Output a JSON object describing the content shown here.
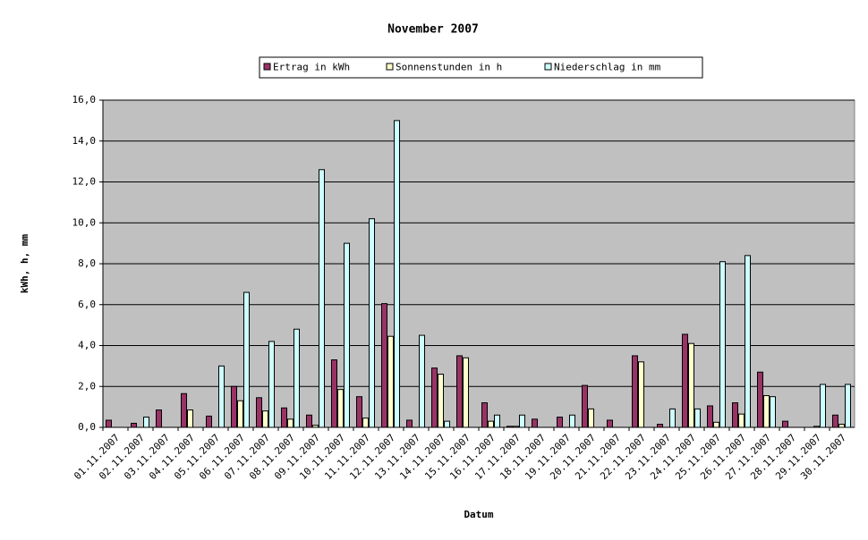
{
  "chart_data": {
    "type": "bar",
    "title": "November 2007",
    "x_label": "Datum",
    "y_label": "kWh, h, mm",
    "categories": [
      "01.11.2007",
      "02.11.2007",
      "03.11.2007",
      "04.11.2007",
      "05.11.2007",
      "06.11.2007",
      "07.11.2007",
      "08.11.2007",
      "09.11.2007",
      "10.11.2007",
      "11.11.2007",
      "12.11.2007",
      "13.11.2007",
      "14.11.2007",
      "15.11.2007",
      "16.11.2007",
      "17.11.2007",
      "18.11.2007",
      "19.11.2007",
      "20.11.2007",
      "21.11.2007",
      "22.11.2007",
      "23.11.2007",
      "24.11.2007",
      "25.11.2007",
      "26.11.2007",
      "27.11.2007",
      "28.11.2007",
      "29.11.2007",
      "30.11.2007"
    ],
    "series": [
      {
        "name": "Ertrag in kWh",
        "color": "#993366",
        "values": [
          0.35,
          0.2,
          0.85,
          1.65,
          0.55,
          2.0,
          1.45,
          0.95,
          0.6,
          3.3,
          1.5,
          6.05,
          0.35,
          2.9,
          3.5,
          1.2,
          0.05,
          0.4,
          0.5,
          2.05,
          0.35,
          3.5,
          0.15,
          4.55,
          1.05,
          1.2,
          2.7,
          0.3,
          0,
          0.6
        ]
      },
      {
        "name": "Sonnenstunden in h",
        "color": "#ffffcc",
        "values": [
          0,
          0,
          0,
          0.85,
          0,
          1.3,
          0.8,
          0.4,
          0.1,
          1.85,
          0.45,
          4.45,
          0,
          2.6,
          3.4,
          0.3,
          0.05,
          0,
          0,
          0.9,
          0,
          3.2,
          0,
          4.1,
          0.25,
          0.65,
          1.55,
          0,
          0.05,
          0.15
        ]
      },
      {
        "name": "Niederschlag in mm",
        "color": "#ccffff",
        "values": [
          0,
          0.5,
          0,
          0,
          3.0,
          6.6,
          4.2,
          4.8,
          12.6,
          9.0,
          10.2,
          15.0,
          4.5,
          0.3,
          0,
          0.6,
          0.6,
          0,
          0.6,
          0,
          0,
          0,
          0.9,
          0.9,
          8.1,
          8.4,
          1.5,
          0,
          2.1,
          2.1
        ]
      }
    ],
    "ylim": [
      0,
      16
    ],
    "yticks": [
      {
        "value": 0,
        "label": "0,0"
      },
      {
        "value": 2,
        "label": "2,0"
      },
      {
        "value": 4,
        "label": "4,0"
      },
      {
        "value": 6,
        "label": "6,0"
      },
      {
        "value": 8,
        "label": "8,0"
      },
      {
        "value": 10,
        "label": "10,0"
      },
      {
        "value": 12,
        "label": "12,0"
      },
      {
        "value": 14,
        "label": "14,0"
      },
      {
        "value": 16,
        "label": "16,0"
      }
    ],
    "grid": true
  }
}
